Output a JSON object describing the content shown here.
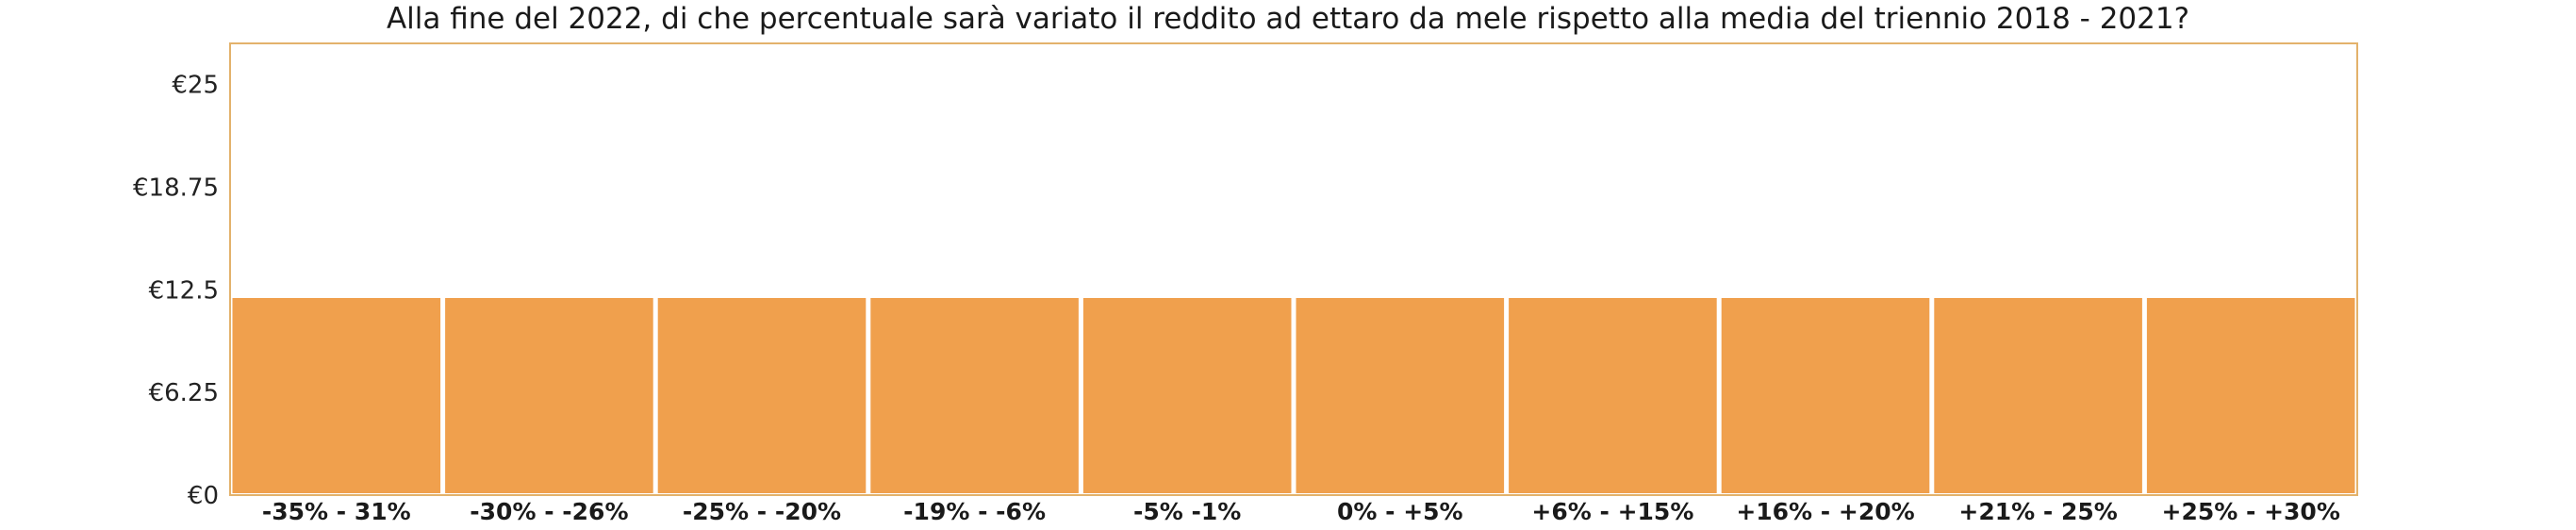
{
  "chart_data": {
    "type": "bar",
    "title": "Alla fine del 2022, di che percentuale sarà variato il reddito ad ettaro da mele rispetto alla media del triennio 2018 - 2021?",
    "xlabel": "",
    "ylabel": "",
    "categories": [
      "-35% - 31%",
      "-30% - -26%",
      "-25% - -20%",
      "-19% - -6%",
      "-5% -1%",
      "0% - +5%",
      "+6% - +15%",
      "+16% - +20%",
      "+21% - 25%",
      "+25% - +30%"
    ],
    "values": [
      12,
      12,
      12,
      12,
      12,
      12,
      12,
      12,
      12,
      12
    ],
    "ylim": [
      0,
      27.5
    ],
    "yticks": [
      0,
      6.25,
      12.5,
      18.75,
      25
    ],
    "ytick_labels": [
      "€0",
      "€6.25",
      "€12.5",
      "€18.75",
      "€25"
    ],
    "grid": false,
    "legend": "none",
    "colors": {
      "bar": "#F0A04D",
      "frame": "#E3B26B"
    }
  }
}
